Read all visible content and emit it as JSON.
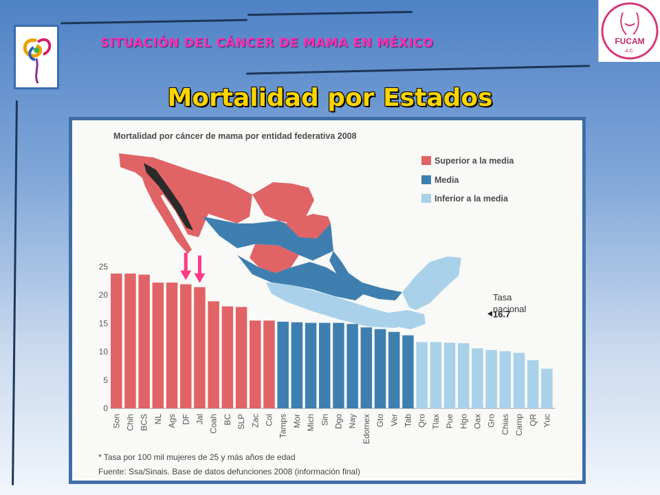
{
  "header": {
    "title": "SITUACIÓN  DEL CÁNCER DE MAMA EN MÉXICO"
  },
  "page": {
    "title": "Mortalidad por Estados"
  },
  "logos": {
    "right_text": "FUCAM",
    "right_sub": "A.C."
  },
  "colors": {
    "superior": "#e06466",
    "media": "#3f7fb0",
    "inferior": "#a9d1ea",
    "title": "#ffd400",
    "header": "#ff2fb2",
    "arrow": "#ff3a86"
  },
  "legend": [
    {
      "label": "Superior a la media",
      "color": "#e06466"
    },
    {
      "label": "Media",
      "color": "#3f7fb0"
    },
    {
      "label": "Inferior a la media",
      "color": "#a9d1ea"
    }
  ],
  "notes": {
    "footnote": "* Tasa por 100 mil mujeres de 25 y más años de edad",
    "source": "Fuente: Ssa/Sinais. Base de datos defunciones 2008 (información final)"
  },
  "chart_data": {
    "type": "bar",
    "title": "Mortalidad por cáncer de mama por entidad federativa 2008",
    "categories": [
      "Son",
      "Chih",
      "BCS",
      "NL",
      "Ags",
      "DF",
      "Jal",
      "Coah",
      "BC",
      "SLP",
      "Zac",
      "Col",
      "Tamps",
      "Mor",
      "Mich",
      "Sin",
      "Dgo",
      "Nay",
      "Edomex",
      "Gto",
      "Ver",
      "Tab",
      "Qro",
      "Tlax",
      "Pue",
      "Hgo",
      "Oax",
      "Gro",
      "Chias",
      "Camp",
      "QR",
      "Yuc"
    ],
    "values": [
      23.8,
      23.8,
      23.6,
      22.2,
      22.2,
      21.9,
      21.4,
      18.9,
      18.0,
      17.9,
      15.5,
      15.5,
      15.3,
      15.2,
      15.1,
      15.1,
      15.1,
      14.9,
      14.3,
      14.0,
      13.5,
      12.9,
      11.7,
      11.7,
      11.6,
      11.5,
      10.6,
      10.3,
      10.1,
      9.8,
      8.5,
      7.0
    ],
    "groups": [
      "superior",
      "superior",
      "superior",
      "superior",
      "superior",
      "superior",
      "superior",
      "superior",
      "superior",
      "superior",
      "superior",
      "superior",
      "media",
      "media",
      "media",
      "media",
      "media",
      "media",
      "media",
      "media",
      "media",
      "media",
      "inferior",
      "inferior",
      "inferior",
      "inferior",
      "inferior",
      "inferior",
      "inferior",
      "inferior",
      "inferior",
      "inferior"
    ],
    "ylim": [
      0,
      25
    ],
    "yticks": [
      0,
      5,
      10,
      15,
      20,
      25
    ],
    "reference": {
      "label_line1": "Tasa",
      "label_line2": "nacional",
      "value": 16.7,
      "value_label": "16.7"
    },
    "highlighted": [
      "DF",
      "Jal"
    ],
    "xlabel": "",
    "ylabel": "",
    "grid": false
  }
}
